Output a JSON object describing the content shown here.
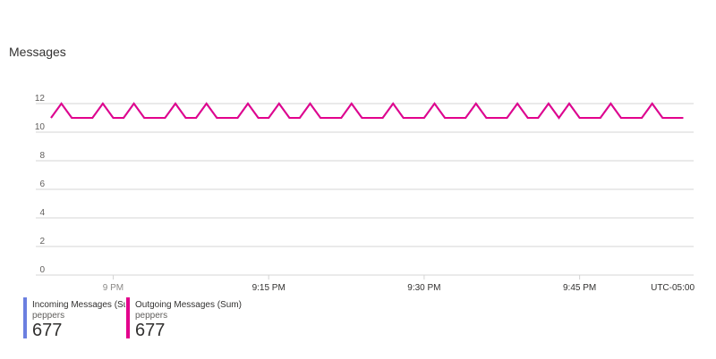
{
  "title": "Messages",
  "timezone": "UTC-05:00",
  "colors": {
    "incoming": "#6b7fe0",
    "outgoing": "#e3008c",
    "grid": "#d4d4d4",
    "axis_text": "#605e5c"
  },
  "chart_data": {
    "type": "line",
    "title": "Messages",
    "xlabel": "",
    "ylabel": "",
    "ylim": [
      0,
      12
    ],
    "y_ticks": [
      0,
      2,
      4,
      6,
      8,
      10,
      12
    ],
    "x_ticks": [
      "9 PM",
      "9:15 PM",
      "9:30 PM",
      "9:45 PM"
    ],
    "x_range_minutes": [
      -6,
      56
    ],
    "grid": true,
    "legend_position": "bottom-left",
    "x_minutes": [
      -6,
      -5,
      -4,
      -3,
      -2,
      -1,
      0,
      1,
      2,
      3,
      4,
      5,
      6,
      7,
      8,
      9,
      10,
      11,
      12,
      13,
      14,
      15,
      16,
      17,
      18,
      19,
      20,
      21,
      22,
      23,
      24,
      25,
      26,
      27,
      28,
      29,
      30,
      31,
      32,
      33,
      34,
      35,
      36,
      37,
      38,
      39,
      40,
      41,
      42,
      43,
      44,
      45,
      46,
      47,
      48,
      49,
      50,
      51,
      52,
      53,
      54,
      55
    ],
    "series": [
      {
        "name": "Incoming Messages (Sum)",
        "values": [
          11,
          12,
          11,
          11,
          11,
          12,
          11,
          11,
          12,
          11,
          11,
          11,
          12,
          11,
          11,
          12,
          11,
          11,
          11,
          12,
          11,
          11,
          12,
          11,
          11,
          12,
          11,
          11,
          11,
          12,
          11,
          11,
          11,
          12,
          11,
          11,
          11,
          12,
          11,
          11,
          11,
          12,
          11,
          11,
          11,
          12,
          11,
          11,
          12,
          11,
          12,
          11,
          11,
          11,
          12,
          11,
          11,
          11,
          12,
          11,
          11,
          11
        ]
      },
      {
        "name": "Outgoing Messages (Sum)",
        "values": [
          11,
          12,
          11,
          11,
          11,
          12,
          11,
          11,
          12,
          11,
          11,
          11,
          12,
          11,
          11,
          12,
          11,
          11,
          11,
          12,
          11,
          11,
          12,
          11,
          11,
          12,
          11,
          11,
          11,
          12,
          11,
          11,
          11,
          12,
          11,
          11,
          11,
          12,
          11,
          11,
          11,
          12,
          11,
          11,
          11,
          12,
          11,
          11,
          12,
          11,
          12,
          11,
          11,
          11,
          12,
          11,
          11,
          11,
          12,
          11,
          11,
          11
        ]
      }
    ]
  },
  "legend": [
    {
      "name": "Incoming Messages (Sum)",
      "resource": "peppers",
      "value": "677"
    },
    {
      "name": "Outgoing Messages (Sum)",
      "resource": "peppers",
      "value": "677"
    }
  ]
}
